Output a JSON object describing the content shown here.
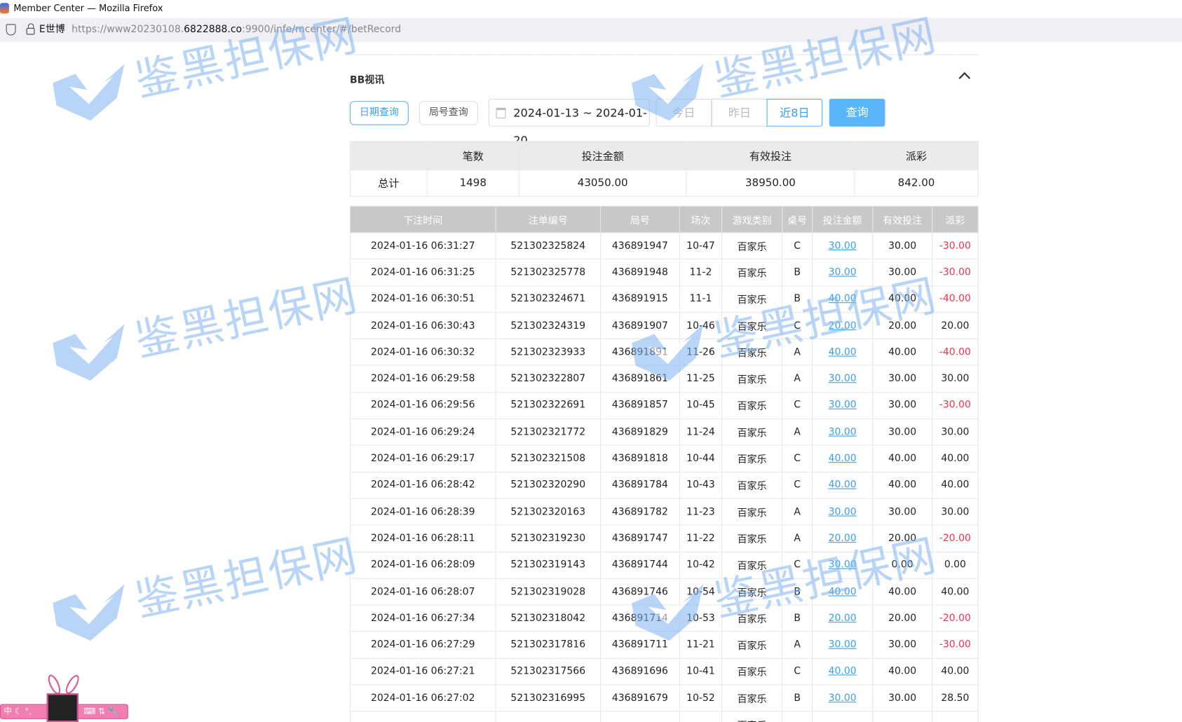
{
  "window": {
    "title": "Member Center — Mozilla Firefox",
    "site_label": "E世博",
    "url_prefix": "https://www20230108.",
    "url_domain": "6822888.co",
    "url_suffix": ":9900/infe/mcenter/#/betRecord"
  },
  "section": {
    "title": "BB视讯"
  },
  "filters": {
    "date_query": "日期查询",
    "round_query": "局号查询",
    "date_range": "2024-01-13 ~ 2024-01-20",
    "today": "今日",
    "yesterday": "昨日",
    "last8": "近8日",
    "query": "查询"
  },
  "summary": {
    "headers": [
      "",
      "笔数",
      "投注金额",
      "有效投注",
      "派彩"
    ],
    "row": [
      "总计",
      "1498",
      "43050.00",
      "38950.00",
      "842.00"
    ]
  },
  "records": {
    "headers": [
      "下注时间",
      "注单编号",
      "局号",
      "场次",
      "游戏类别",
      "桌号",
      "投注金额",
      "有效投注",
      "派彩"
    ],
    "rows": [
      [
        "2024-01-16 06:31:27",
        "521302325824",
        "436891947",
        "10-47",
        "百家乐",
        "C",
        "30.00",
        "30.00",
        "-30.00"
      ],
      [
        "2024-01-16 06:31:25",
        "521302325778",
        "436891948",
        "11-2",
        "百家乐",
        "B",
        "30.00",
        "30.00",
        "-30.00"
      ],
      [
        "2024-01-16 06:30:51",
        "521302324671",
        "436891915",
        "11-1",
        "百家乐",
        "B",
        "40.00",
        "40.00",
        "-40.00"
      ],
      [
        "2024-01-16 06:30:43",
        "521302324319",
        "436891907",
        "10-46",
        "百家乐",
        "C",
        "20.00",
        "20.00",
        "20.00"
      ],
      [
        "2024-01-16 06:30:32",
        "521302323933",
        "436891891",
        "11-26",
        "百家乐",
        "A",
        "40.00",
        "40.00",
        "-40.00"
      ],
      [
        "2024-01-16 06:29:58",
        "521302322807",
        "436891861",
        "11-25",
        "百家乐",
        "A",
        "30.00",
        "30.00",
        "30.00"
      ],
      [
        "2024-01-16 06:29:56",
        "521302322691",
        "436891857",
        "10-45",
        "百家乐",
        "C",
        "30.00",
        "30.00",
        "-30.00"
      ],
      [
        "2024-01-16 06:29:24",
        "521302321772",
        "436891829",
        "11-24",
        "百家乐",
        "A",
        "30.00",
        "30.00",
        "30.00"
      ],
      [
        "2024-01-16 06:29:17",
        "521302321508",
        "436891818",
        "10-44",
        "百家乐",
        "C",
        "40.00",
        "40.00",
        "40.00"
      ],
      [
        "2024-01-16 06:28:42",
        "521302320290",
        "436891784",
        "10-43",
        "百家乐",
        "C",
        "40.00",
        "40.00",
        "40.00"
      ],
      [
        "2024-01-16 06:28:39",
        "521302320163",
        "436891782",
        "11-23",
        "百家乐",
        "A",
        "30.00",
        "30.00",
        "30.00"
      ],
      [
        "2024-01-16 06:28:11",
        "521302319230",
        "436891747",
        "11-22",
        "百家乐",
        "A",
        "20.00",
        "20.00",
        "-20.00"
      ],
      [
        "2024-01-16 06:28:09",
        "521302319143",
        "436891744",
        "10-42",
        "百家乐",
        "C",
        "30.00",
        "0.00",
        "0.00"
      ],
      [
        "2024-01-16 06:28:07",
        "521302319028",
        "436891746",
        "10-54",
        "百家乐",
        "B",
        "40.00",
        "40.00",
        "40.00"
      ],
      [
        "2024-01-16 06:27:34",
        "521302318042",
        "436891714",
        "10-53",
        "百家乐",
        "B",
        "20.00",
        "20.00",
        "-20.00"
      ],
      [
        "2024-01-16 06:27:29",
        "521302317816",
        "436891711",
        "11-21",
        "百家乐",
        "A",
        "30.00",
        "30.00",
        "-30.00"
      ],
      [
        "2024-01-16 06:27:21",
        "521302317566",
        "436891696",
        "10-41",
        "百家乐",
        "C",
        "40.00",
        "40.00",
        "40.00"
      ],
      [
        "2024-01-16 06:27:02",
        "521302316995",
        "436891679",
        "10-52",
        "百家乐",
        "B",
        "30.00",
        "30.00",
        "28.50"
      ],
      [
        "",
        "",
        "",
        "",
        "百家乐",
        "",
        "",
        "",
        ""
      ]
    ]
  },
  "watermark": {
    "text": "鉴黑担保网",
    "color": "#7fb3f2"
  },
  "ime": {
    "label": "中 ☾ °,",
    "tools": "⌨ ⇅ 🔧"
  },
  "colors": {
    "accent": "#59b6fb",
    "link": "#3a9ef0",
    "negative": "#f0334b",
    "header_bg": "#c8c8c8"
  }
}
